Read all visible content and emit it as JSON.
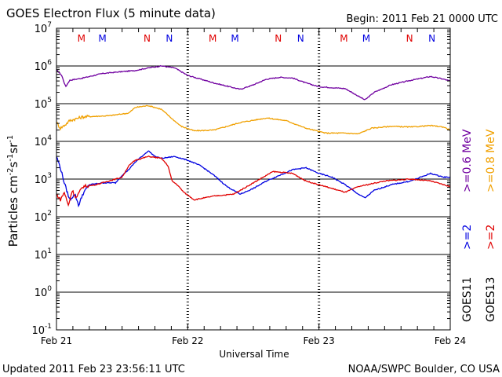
{
  "chart_data": {
    "type": "line",
    "title": "GOES Electron Flux (5 minute data)",
    "begin_label": "Begin: 2011 Feb 21 0000 UTC",
    "xlabel": "Universal Time",
    "ylabel": {
      "base": "Particles cm",
      "e1": "-2",
      "mid": "s",
      "e2": "-1",
      "end": "sr",
      "e3": "-1"
    },
    "updated": "Updated 2011 Feb 23 23:56:11 UTC",
    "credit": "NOAA/SWPC Boulder, CO USA",
    "y_scale": "log",
    "ylim_exp": [
      -1,
      7
    ],
    "y_ticks": [
      {
        "base": "10",
        "exp": "7"
      },
      {
        "base": "10",
        "exp": "6"
      },
      {
        "base": "10",
        "exp": "5"
      },
      {
        "base": "10",
        "exp": "4"
      },
      {
        "base": "10",
        "exp": "3"
      },
      {
        "base": "10",
        "exp": "2"
      },
      {
        "base": "10",
        "exp": "1"
      },
      {
        "base": "10",
        "exp": "0"
      },
      {
        "base": "10",
        "exp": "-1"
      }
    ],
    "xlim_days": [
      0,
      3
    ],
    "x_ticks": [
      {
        "label": "Feb 21",
        "day": 0
      },
      {
        "label": "Feb 22",
        "day": 1
      },
      {
        "label": "Feb 23",
        "day": 2
      },
      {
        "label": "Feb 24",
        "day": 3
      }
    ],
    "threshold": {
      "value_exp": 3,
      "style": "dashed"
    },
    "markers": [
      {
        "label": "M",
        "day": 0.19,
        "color": "#e00000"
      },
      {
        "label": "M",
        "day": 0.35,
        "color": "#0000e0"
      },
      {
        "label": "N",
        "day": 0.69,
        "color": "#e00000"
      },
      {
        "label": "N",
        "day": 0.86,
        "color": "#0000e0"
      },
      {
        "label": "M",
        "day": 1.19,
        "color": "#e00000"
      },
      {
        "label": "M",
        "day": 1.36,
        "color": "#0000e0"
      },
      {
        "label": "N",
        "day": 1.69,
        "color": "#e00000"
      },
      {
        "label": "N",
        "day": 1.86,
        "color": "#0000e0"
      },
      {
        "label": "M",
        "day": 2.19,
        "color": "#e00000"
      },
      {
        "label": "M",
        "day": 2.36,
        "color": "#0000e0"
      },
      {
        "label": "N",
        "day": 2.69,
        "color": "#e00000"
      },
      {
        "label": "N",
        "day": 2.86,
        "color": "#0000e0"
      }
    ],
    "legend": [
      {
        "label": ">=0.6  MeV",
        "color": "#7000a0"
      },
      {
        "label": ">=0.8  MeV",
        "color": "#f0a000"
      },
      {
        "label": ">=2",
        "color": "#0000e0"
      },
      {
        "label": ">=2",
        "color": "#e00000"
      },
      {
        "label": "GOES11",
        "color": "#000000"
      },
      {
        "label": "GOES13",
        "color": "#000000"
      }
    ],
    "series": [
      {
        "name": "GOES11 >=0.6 MeV",
        "color": "#7000a0",
        "log_values": [
          [
            0.0,
            5.9
          ],
          [
            0.04,
            5.75
          ],
          [
            0.07,
            5.45
          ],
          [
            0.1,
            5.62
          ],
          [
            0.2,
            5.68
          ],
          [
            0.35,
            5.8
          ],
          [
            0.5,
            5.85
          ],
          [
            0.6,
            5.88
          ],
          [
            0.7,
            5.95
          ],
          [
            0.8,
            6.0
          ],
          [
            0.9,
            5.95
          ],
          [
            1.0,
            5.75
          ],
          [
            1.2,
            5.55
          ],
          [
            1.4,
            5.38
          ],
          [
            1.5,
            5.5
          ],
          [
            1.6,
            5.65
          ],
          [
            1.7,
            5.7
          ],
          [
            1.8,
            5.68
          ],
          [
            1.9,
            5.55
          ],
          [
            2.0,
            5.45
          ],
          [
            2.2,
            5.4
          ],
          [
            2.3,
            5.2
          ],
          [
            2.35,
            5.1
          ],
          [
            2.42,
            5.3
          ],
          [
            2.55,
            5.5
          ],
          [
            2.7,
            5.62
          ],
          [
            2.85,
            5.72
          ],
          [
            2.95,
            5.65
          ],
          [
            3.0,
            5.6
          ]
        ]
      },
      {
        "name": "GOES11 >=0.8 MeV",
        "color": "#f0a000",
        "log_values": [
          [
            0.0,
            4.5
          ],
          [
            0.03,
            4.35
          ],
          [
            0.07,
            4.45
          ],
          [
            0.1,
            4.55
          ],
          [
            0.2,
            4.65
          ],
          [
            0.4,
            4.68
          ],
          [
            0.55,
            4.75
          ],
          [
            0.6,
            4.9
          ],
          [
            0.7,
            4.95
          ],
          [
            0.8,
            4.85
          ],
          [
            0.88,
            4.6
          ],
          [
            0.95,
            4.4
          ],
          [
            1.05,
            4.28
          ],
          [
            1.2,
            4.3
          ],
          [
            1.4,
            4.5
          ],
          [
            1.6,
            4.62
          ],
          [
            1.75,
            4.55
          ],
          [
            1.9,
            4.35
          ],
          [
            2.05,
            4.22
          ],
          [
            2.2,
            4.22
          ],
          [
            2.3,
            4.2
          ],
          [
            2.4,
            4.35
          ],
          [
            2.55,
            4.4
          ],
          [
            2.7,
            4.38
          ],
          [
            2.85,
            4.42
          ],
          [
            2.95,
            4.38
          ],
          [
            3.0,
            4.3
          ]
        ]
      },
      {
        "name": "GOES11 >=2 MeV",
        "color": "#0000e0",
        "log_values": [
          [
            0.0,
            3.6
          ],
          [
            0.03,
            3.3
          ],
          [
            0.06,
            2.9
          ],
          [
            0.1,
            2.45
          ],
          [
            0.14,
            2.6
          ],
          [
            0.17,
            2.3
          ],
          [
            0.2,
            2.6
          ],
          [
            0.25,
            2.85
          ],
          [
            0.35,
            2.9
          ],
          [
            0.45,
            2.9
          ],
          [
            0.5,
            3.1
          ],
          [
            0.55,
            3.25
          ],
          [
            0.6,
            3.45
          ],
          [
            0.65,
            3.6
          ],
          [
            0.7,
            3.75
          ],
          [
            0.75,
            3.6
          ],
          [
            0.8,
            3.55
          ],
          [
            0.9,
            3.6
          ],
          [
            1.0,
            3.5
          ],
          [
            1.1,
            3.35
          ],
          [
            1.2,
            3.1
          ],
          [
            1.3,
            2.8
          ],
          [
            1.4,
            2.6
          ],
          [
            1.5,
            2.75
          ],
          [
            1.6,
            2.95
          ],
          [
            1.7,
            3.1
          ],
          [
            1.8,
            3.25
          ],
          [
            1.9,
            3.3
          ],
          [
            2.0,
            3.15
          ],
          [
            2.1,
            3.05
          ],
          [
            2.2,
            2.85
          ],
          [
            2.3,
            2.6
          ],
          [
            2.35,
            2.5
          ],
          [
            2.42,
            2.7
          ],
          [
            2.55,
            2.85
          ],
          [
            2.7,
            2.95
          ],
          [
            2.85,
            3.15
          ],
          [
            2.95,
            3.05
          ],
          [
            3.0,
            3.05
          ]
        ]
      },
      {
        "name": "GOES13 >=2 MeV",
        "color": "#e00000",
        "log_values": [
          [
            0.0,
            2.6
          ],
          [
            0.03,
            2.45
          ],
          [
            0.06,
            2.65
          ],
          [
            0.09,
            2.3
          ],
          [
            0.12,
            2.7
          ],
          [
            0.15,
            2.5
          ],
          [
            0.2,
            2.8
          ],
          [
            0.3,
            2.85
          ],
          [
            0.4,
            2.95
          ],
          [
            0.5,
            3.05
          ],
          [
            0.55,
            3.35
          ],
          [
            0.6,
            3.5
          ],
          [
            0.7,
            3.6
          ],
          [
            0.8,
            3.55
          ],
          [
            0.85,
            3.35
          ],
          [
            0.88,
            2.95
          ],
          [
            0.92,
            2.85
          ],
          [
            0.97,
            2.65
          ],
          [
            1.05,
            2.45
          ],
          [
            1.2,
            2.55
          ],
          [
            1.35,
            2.6
          ],
          [
            1.5,
            2.9
          ],
          [
            1.65,
            3.2
          ],
          [
            1.8,
            3.15
          ],
          [
            1.9,
            2.95
          ],
          [
            2.0,
            2.85
          ],
          [
            2.2,
            2.65
          ],
          [
            2.3,
            2.8
          ],
          [
            2.5,
            2.95
          ],
          [
            2.7,
            3.0
          ],
          [
            2.85,
            2.95
          ],
          [
            3.0,
            2.8
          ]
        ]
      }
    ]
  }
}
